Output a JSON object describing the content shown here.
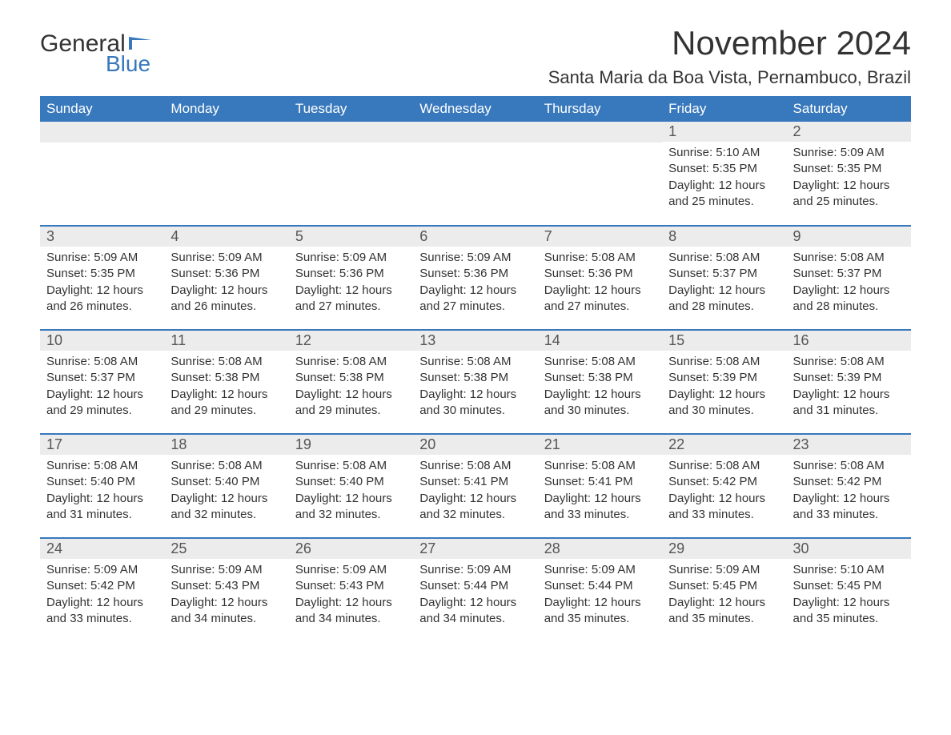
{
  "brand": {
    "word1": "General",
    "word2": "Blue",
    "accent_color": "#3878bc"
  },
  "title": "November 2024",
  "location": "Santa Maria da Boa Vista, Pernambuco, Brazil",
  "colors": {
    "header_bg": "#3878bc",
    "header_text": "#ffffff",
    "daynum_bg": "#ececec",
    "row_border": "#3878bc",
    "text": "#333333"
  },
  "day_headers": [
    "Sunday",
    "Monday",
    "Tuesday",
    "Wednesday",
    "Thursday",
    "Friday",
    "Saturday"
  ],
  "weeks": [
    [
      null,
      null,
      null,
      null,
      null,
      {
        "n": "1",
        "sunrise": "Sunrise: 5:10 AM",
        "sunset": "Sunset: 5:35 PM",
        "daylight": "Daylight: 12 hours and 25 minutes."
      },
      {
        "n": "2",
        "sunrise": "Sunrise: 5:09 AM",
        "sunset": "Sunset: 5:35 PM",
        "daylight": "Daylight: 12 hours and 25 minutes."
      }
    ],
    [
      {
        "n": "3",
        "sunrise": "Sunrise: 5:09 AM",
        "sunset": "Sunset: 5:35 PM",
        "daylight": "Daylight: 12 hours and 26 minutes."
      },
      {
        "n": "4",
        "sunrise": "Sunrise: 5:09 AM",
        "sunset": "Sunset: 5:36 PM",
        "daylight": "Daylight: 12 hours and 26 minutes."
      },
      {
        "n": "5",
        "sunrise": "Sunrise: 5:09 AM",
        "sunset": "Sunset: 5:36 PM",
        "daylight": "Daylight: 12 hours and 27 minutes."
      },
      {
        "n": "6",
        "sunrise": "Sunrise: 5:09 AM",
        "sunset": "Sunset: 5:36 PM",
        "daylight": "Daylight: 12 hours and 27 minutes."
      },
      {
        "n": "7",
        "sunrise": "Sunrise: 5:08 AM",
        "sunset": "Sunset: 5:36 PM",
        "daylight": "Daylight: 12 hours and 27 minutes."
      },
      {
        "n": "8",
        "sunrise": "Sunrise: 5:08 AM",
        "sunset": "Sunset: 5:37 PM",
        "daylight": "Daylight: 12 hours and 28 minutes."
      },
      {
        "n": "9",
        "sunrise": "Sunrise: 5:08 AM",
        "sunset": "Sunset: 5:37 PM",
        "daylight": "Daylight: 12 hours and 28 minutes."
      }
    ],
    [
      {
        "n": "10",
        "sunrise": "Sunrise: 5:08 AM",
        "sunset": "Sunset: 5:37 PM",
        "daylight": "Daylight: 12 hours and 29 minutes."
      },
      {
        "n": "11",
        "sunrise": "Sunrise: 5:08 AM",
        "sunset": "Sunset: 5:38 PM",
        "daylight": "Daylight: 12 hours and 29 minutes."
      },
      {
        "n": "12",
        "sunrise": "Sunrise: 5:08 AM",
        "sunset": "Sunset: 5:38 PM",
        "daylight": "Daylight: 12 hours and 29 minutes."
      },
      {
        "n": "13",
        "sunrise": "Sunrise: 5:08 AM",
        "sunset": "Sunset: 5:38 PM",
        "daylight": "Daylight: 12 hours and 30 minutes."
      },
      {
        "n": "14",
        "sunrise": "Sunrise: 5:08 AM",
        "sunset": "Sunset: 5:38 PM",
        "daylight": "Daylight: 12 hours and 30 minutes."
      },
      {
        "n": "15",
        "sunrise": "Sunrise: 5:08 AM",
        "sunset": "Sunset: 5:39 PM",
        "daylight": "Daylight: 12 hours and 30 minutes."
      },
      {
        "n": "16",
        "sunrise": "Sunrise: 5:08 AM",
        "sunset": "Sunset: 5:39 PM",
        "daylight": "Daylight: 12 hours and 31 minutes."
      }
    ],
    [
      {
        "n": "17",
        "sunrise": "Sunrise: 5:08 AM",
        "sunset": "Sunset: 5:40 PM",
        "daylight": "Daylight: 12 hours and 31 minutes."
      },
      {
        "n": "18",
        "sunrise": "Sunrise: 5:08 AM",
        "sunset": "Sunset: 5:40 PM",
        "daylight": "Daylight: 12 hours and 32 minutes."
      },
      {
        "n": "19",
        "sunrise": "Sunrise: 5:08 AM",
        "sunset": "Sunset: 5:40 PM",
        "daylight": "Daylight: 12 hours and 32 minutes."
      },
      {
        "n": "20",
        "sunrise": "Sunrise: 5:08 AM",
        "sunset": "Sunset: 5:41 PM",
        "daylight": "Daylight: 12 hours and 32 minutes."
      },
      {
        "n": "21",
        "sunrise": "Sunrise: 5:08 AM",
        "sunset": "Sunset: 5:41 PM",
        "daylight": "Daylight: 12 hours and 33 minutes."
      },
      {
        "n": "22",
        "sunrise": "Sunrise: 5:08 AM",
        "sunset": "Sunset: 5:42 PM",
        "daylight": "Daylight: 12 hours and 33 minutes."
      },
      {
        "n": "23",
        "sunrise": "Sunrise: 5:08 AM",
        "sunset": "Sunset: 5:42 PM",
        "daylight": "Daylight: 12 hours and 33 minutes."
      }
    ],
    [
      {
        "n": "24",
        "sunrise": "Sunrise: 5:09 AM",
        "sunset": "Sunset: 5:42 PM",
        "daylight": "Daylight: 12 hours and 33 minutes."
      },
      {
        "n": "25",
        "sunrise": "Sunrise: 5:09 AM",
        "sunset": "Sunset: 5:43 PM",
        "daylight": "Daylight: 12 hours and 34 minutes."
      },
      {
        "n": "26",
        "sunrise": "Sunrise: 5:09 AM",
        "sunset": "Sunset: 5:43 PM",
        "daylight": "Daylight: 12 hours and 34 minutes."
      },
      {
        "n": "27",
        "sunrise": "Sunrise: 5:09 AM",
        "sunset": "Sunset: 5:44 PM",
        "daylight": "Daylight: 12 hours and 34 minutes."
      },
      {
        "n": "28",
        "sunrise": "Sunrise: 5:09 AM",
        "sunset": "Sunset: 5:44 PM",
        "daylight": "Daylight: 12 hours and 35 minutes."
      },
      {
        "n": "29",
        "sunrise": "Sunrise: 5:09 AM",
        "sunset": "Sunset: 5:45 PM",
        "daylight": "Daylight: 12 hours and 35 minutes."
      },
      {
        "n": "30",
        "sunrise": "Sunrise: 5:10 AM",
        "sunset": "Sunset: 5:45 PM",
        "daylight": "Daylight: 12 hours and 35 minutes."
      }
    ]
  ]
}
